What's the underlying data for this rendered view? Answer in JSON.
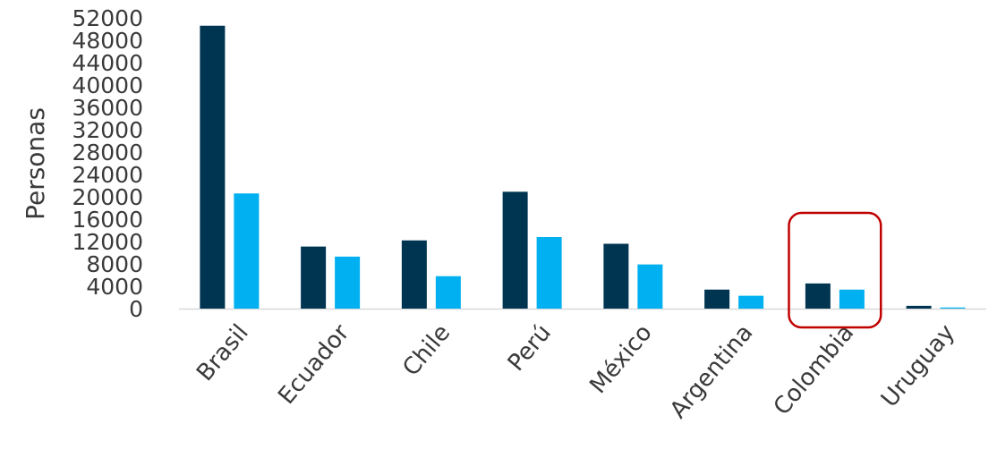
{
  "chart_data": {
    "type": "bar",
    "ylabel": "Personas",
    "xlabel": "",
    "title": "",
    "ylim": [
      0,
      52000
    ],
    "yticks": [
      0,
      4000,
      8000,
      12000,
      16000,
      20000,
      24000,
      28000,
      32000,
      36000,
      40000,
      44000,
      48000,
      52000
    ],
    "categories": [
      "Brasil",
      "Ecuador",
      "Chile",
      "Perú",
      "México",
      "Argentina",
      "Colombia",
      "Uruguay"
    ],
    "series": [
      {
        "color": "#003552",
        "values": [
          50600,
          11100,
          12200,
          20900,
          11600,
          3400,
          4500,
          500
        ]
      },
      {
        "color": "#00b0f0",
        "values": [
          20600,
          9300,
          5800,
          12800,
          7900,
          2300,
          3400,
          200
        ]
      }
    ],
    "highlight": {
      "category": "Colombia",
      "color": "#c00000"
    },
    "grid": false,
    "legend": "none"
  }
}
